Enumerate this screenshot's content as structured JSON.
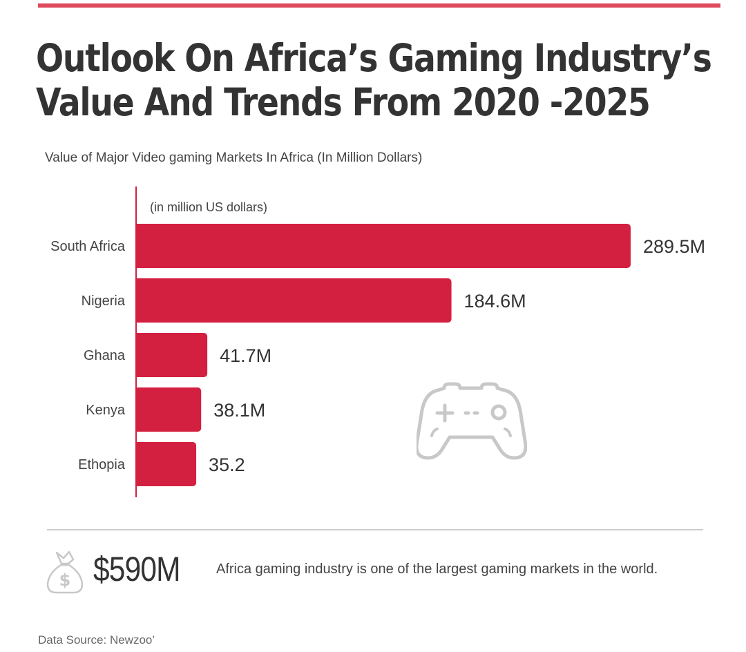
{
  "title": {
    "line1": "Outlook On Africa’s Gaming Industry’s",
    "line2": "Value And Trends From 2020 -2025"
  },
  "subtitle": "Value of Major Video gaming Markets In Africa (In Million Dollars)",
  "chart_data": {
    "type": "bar",
    "orientation": "horizontal",
    "title": "Value of Major Video gaming Markets In Africa (In Million Dollars)",
    "unit_note": "(in million US dollars)",
    "categories": [
      "South Africa",
      "Nigeria",
      "Ghana",
      "Kenya",
      "Ethopia"
    ],
    "values": [
      289.5,
      184.6,
      41.7,
      38.1,
      35.2
    ],
    "value_labels": [
      "289.5M",
      "184.6M",
      "41.7M",
      "38.1M",
      "35.2"
    ],
    "xlim": [
      0,
      289.5
    ],
    "bar_color": "#d42040",
    "axis_color": "#d42040"
  },
  "summary": {
    "value": "$590M",
    "text": "Africa gaming industry is one of the largest gaming markets in the world."
  },
  "source": "Data Source: Newzoo’",
  "icons": {
    "controller": "gamepad-icon",
    "money": "money-bag-icon"
  },
  "colors": {
    "accent": "#e04a5f",
    "bar": "#d42040",
    "icon": "#c8c8c8",
    "text": "#333333"
  }
}
